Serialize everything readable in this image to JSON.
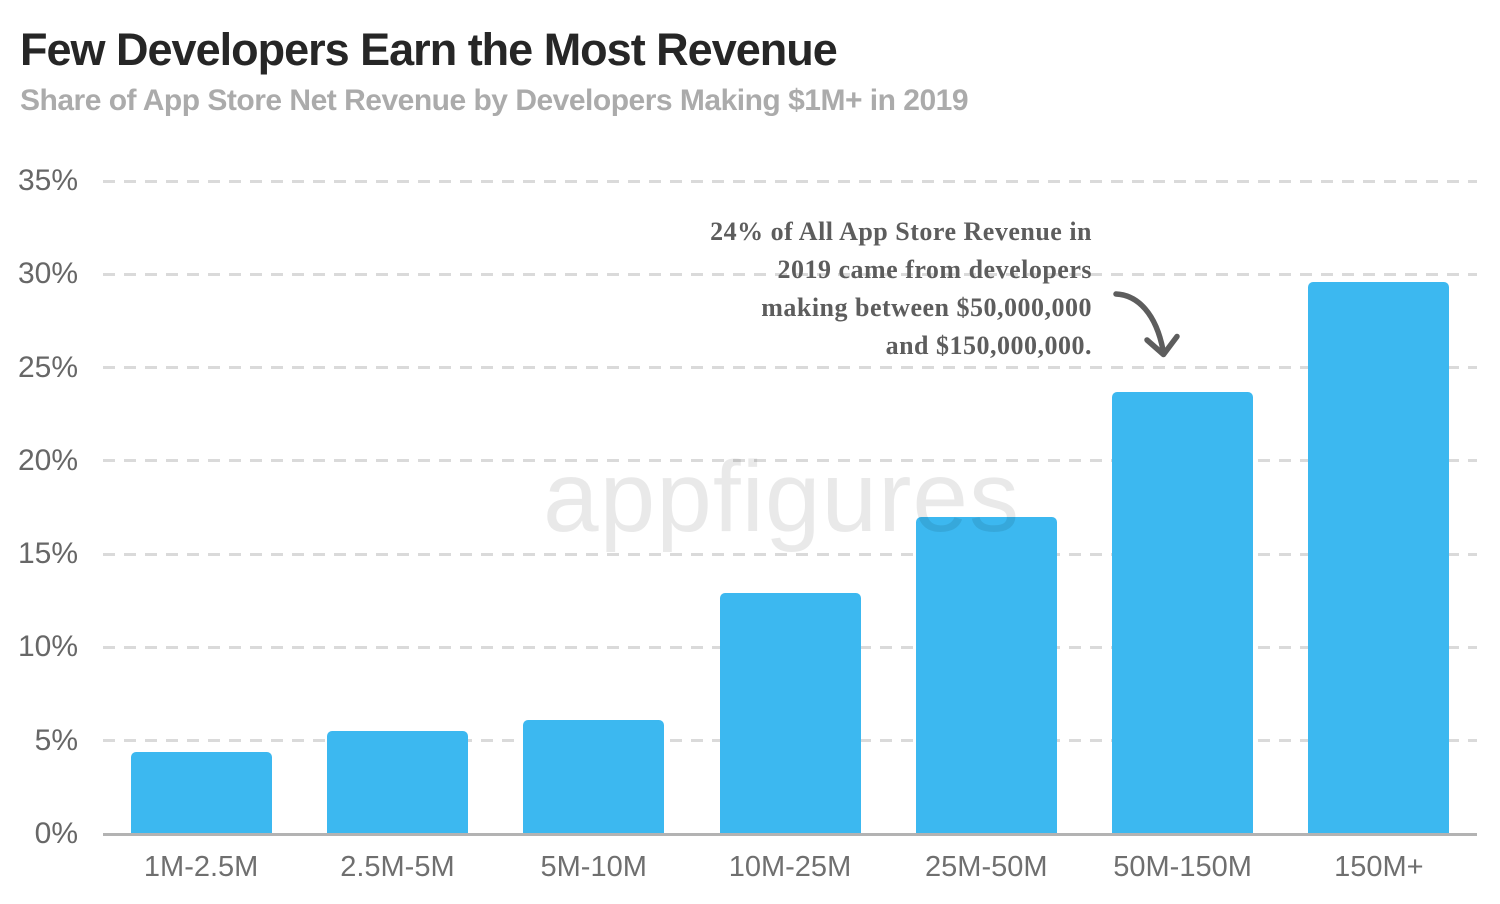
{
  "header": {
    "title": "Few Developers Earn the Most Revenue",
    "subtitle": "Share of App Store Net Revenue by Developers Making $1M+ in 2019"
  },
  "watermark": {
    "text": "appfigures"
  },
  "annotation": {
    "text": "24% of All App Store Revenue in 2019 came from developers making between $50,000,000 and $150,000,000.",
    "lines": [
      "24% of All App Store Revenue in",
      "2019 came from developers",
      "making between $50,000,000",
      "and $150,000,000."
    ]
  },
  "chart_data": {
    "type": "bar",
    "title": "Few Developers Earn the Most Revenue",
    "subtitle": "Share of App Store Net Revenue by Developers Making $1M+ in 2019",
    "categories": [
      "1M-2.5M",
      "2.5M-5M",
      "5M-10M",
      "10M-25M",
      "25M-50M",
      "50M-150M",
      "150M+"
    ],
    "values": [
      4.4,
      5.5,
      6.1,
      12.9,
      17.0,
      23.7,
      29.6
    ],
    "xlabel": "",
    "ylabel": "",
    "ylim": [
      0,
      35
    ],
    "ytick_step": 5,
    "ytick_labels": [
      "0%",
      "5%",
      "10%",
      "15%",
      "20%",
      "25%",
      "30%",
      "35%"
    ],
    "grid": "horizontal-dashed",
    "legend": "none",
    "bar_color": "#3cb8f0"
  },
  "colors": {
    "bar": "#3cb8f0",
    "title": "#262626",
    "subtitle": "#ababab",
    "axis_label": "#6f6f6f",
    "gridline": "#dadada",
    "baseline": "#b3b3b3",
    "annotation": "#5d5d5d"
  }
}
